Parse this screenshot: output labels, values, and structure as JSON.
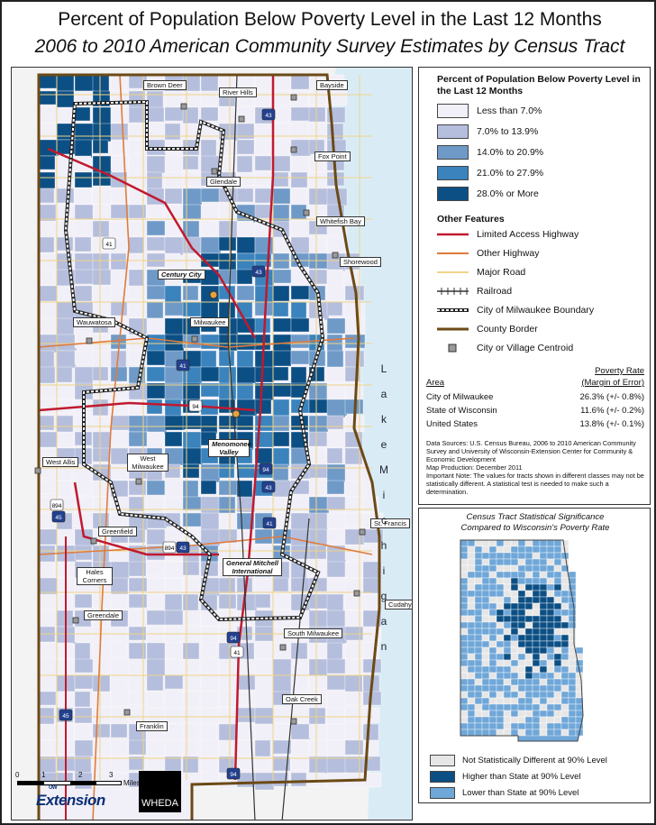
{
  "title": "Percent of Population Below Poverty Level in the Last 12 Months",
  "subtitle": "2006 to 2010 American Community Survey Estimates by Census Tract",
  "colors": {
    "class1": "#f1eff7",
    "class2": "#b5bedc",
    "class3": "#6f9ac8",
    "class4": "#3a83bd",
    "class5": "#0c4f84",
    "lake": "#d9ecf6",
    "highway": "#c0192f",
    "other_highway": "#e07b3c",
    "major_road": "#f0d48a",
    "county_border": "#6b4a16",
    "not_sig": "#e6e6e6",
    "higher": "#0c4f84",
    "lower": "#6fa7d8"
  },
  "legend": {
    "title": "Percent of Population Below Poverty Level in the Last 12 Months",
    "classes": [
      {
        "label": "Less than 7.0%",
        "color": "#f1eff7"
      },
      {
        "label": "7.0% to 13.9%",
        "color": "#b5bedc"
      },
      {
        "label": "14.0% to 20.9%",
        "color": "#6f9ac8"
      },
      {
        "label": "21.0% to 27.9%",
        "color": "#3a83bd"
      },
      {
        "label": "28.0% or More",
        "color": "#0c4f84"
      }
    ],
    "features_title": "Other Features",
    "features": [
      {
        "label": "Limited Access Highway",
        "icon": "red-line-icon"
      },
      {
        "label": "Other Highway",
        "icon": "orange-line-icon"
      },
      {
        "label": "Major Road",
        "icon": "yellow-line-icon"
      },
      {
        "label": "Railroad",
        "icon": "railroad-icon"
      },
      {
        "label": "City of Milwaukee Boundary",
        "icon": "dashed-boundary-icon"
      },
      {
        "label": "County Border",
        "icon": "brown-line-icon"
      },
      {
        "label": "City or Village Centroid",
        "icon": "gray-square-icon"
      }
    ]
  },
  "poverty_table": {
    "col1_header": "Area",
    "col2_header_line1": "Poverty Rate",
    "col2_header_line2": "(Margin of Error)",
    "rows": [
      {
        "area": "City of Milwaukee",
        "rate": "26.3% (+/- 0.8%)"
      },
      {
        "area": "State of Wisconsin",
        "rate": "11.6% (+/- 0.2%)"
      },
      {
        "area": "United States",
        "rate": "13.8% (+/- 0.1%)"
      }
    ]
  },
  "sources": "Data Sources: U.S. Census Bureau, 2006 to 2010 American Community Survey and University of Wisconsin-Extension Center for Community & Economic Development",
  "production": "Map Production: December 2011",
  "note": "Important Note: The values for tracts shown in different classes may not be statistically different. A statistical test is needed to make such a determination.",
  "inset": {
    "title_line1": "Census Tract Statistical Significance",
    "title_line2": "Compared to Wisconsin's Poverty Rate",
    "legend": [
      {
        "label": "Not Statistically Different at 90% Level",
        "color": "#e6e6e6"
      },
      {
        "label": "Higher than State at 90% Level",
        "color": "#0c4f84"
      },
      {
        "label": "Lower than State at 90% Level",
        "color": "#6fa7d8"
      }
    ]
  },
  "place_labels": [
    "Brown Deer",
    "River Hills",
    "Bayside",
    "Fox Point",
    "Glendale",
    "Whitefish Bay",
    "Shorewood",
    "Century City",
    "Wauwatosa",
    "Milwaukee",
    "West Allis",
    "West Milwaukee",
    "Menomonee Valley",
    "St. Francis",
    "Greenfield",
    "Hales Corners",
    "General Mitchell International",
    "Cudahy",
    "Greendale",
    "South Milwaukee",
    "Oak Creek",
    "Franklin"
  ],
  "lake_label": "Lake Michigan",
  "highway_shields": [
    "43",
    "41",
    "43",
    "41",
    "94",
    "94",
    "43",
    "894",
    "45",
    "41",
    "894",
    "43",
    "94",
    "41",
    "94",
    "45"
  ],
  "scale": {
    "ticks": [
      "0",
      "1",
      "2",
      "3"
    ],
    "unit": "Miles"
  },
  "logos": {
    "extension_small": "UW",
    "extension": "Extension",
    "wheda": "WHEDA"
  }
}
